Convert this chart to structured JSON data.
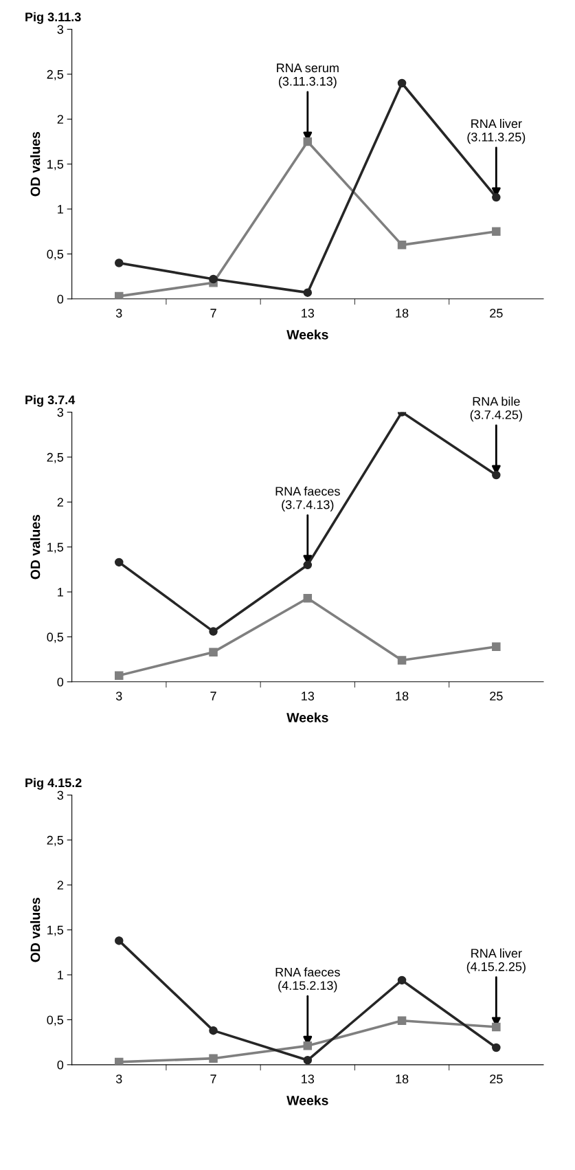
{
  "chart_data": [
    {
      "type": "line",
      "title": "Pig 3.11.3",
      "xlabel": "Weeks",
      "ylabel": "OD values",
      "categories": [
        "3",
        "7",
        "13",
        "18",
        "25"
      ],
      "series": [
        {
          "color": "#262626",
          "marker": "circle",
          "values": [
            0.4,
            0.22,
            0.07,
            2.4,
            1.13
          ]
        },
        {
          "color": "#7f7f7f",
          "marker": "square",
          "values": [
            0.03,
            0.18,
            1.75,
            0.6,
            0.75
          ]
        }
      ],
      "ylim": [
        0,
        3
      ],
      "yticks": [
        0,
        {
          "value": 0.5,
          "label": "0,5"
        },
        1,
        {
          "value": 1.5,
          "label": "1,5"
        },
        2,
        {
          "value": 2.5,
          "label": "2,5"
        },
        3
      ],
      "grid": false,
      "legend": false,
      "annotations": [
        {
          "text": "RNA serum\n(3.11.3.13)",
          "x": "13",
          "y": 1.75
        },
        {
          "text": "RNA liver\n(3.11.3.25)",
          "x": "25",
          "y": 1.13
        }
      ]
    },
    {
      "type": "line",
      "title": "Pig 3.7.4",
      "xlabel": "Weeks",
      "ylabel": "OD values",
      "categories": [
        "3",
        "7",
        "13",
        "18",
        "25"
      ],
      "series": [
        {
          "color": "#262626",
          "marker": "circle",
          "values": [
            1.33,
            0.56,
            1.3,
            3.0,
            2.3
          ]
        },
        {
          "color": "#7f7f7f",
          "marker": "square",
          "values": [
            0.07,
            0.33,
            0.93,
            0.24,
            0.39
          ]
        }
      ],
      "ylim": [
        0,
        3
      ],
      "yticks": [
        0,
        {
          "value": 0.5,
          "label": "0,5"
        },
        1,
        {
          "value": 1.5,
          "label": "1,5"
        },
        2,
        {
          "value": 2.5,
          "label": "2,5"
        },
        3
      ],
      "grid": false,
      "legend": false,
      "annotations": [
        {
          "text": "RNA faeces\n(3.7.4.13)",
          "x": "13",
          "y": 1.3
        },
        {
          "text": "RNA bile\n(3.7.4.25)",
          "x": "25",
          "y": 2.3
        }
      ]
    },
    {
      "type": "line",
      "title": "Pig 4.15.2",
      "xlabel": "Weeks",
      "ylabel": "OD values",
      "categories": [
        "3",
        "7",
        "13",
        "18",
        "25"
      ],
      "series": [
        {
          "color": "#262626",
          "marker": "circle",
          "values": [
            1.38,
            0.38,
            0.05,
            0.94,
            0.19
          ]
        },
        {
          "color": "#7f7f7f",
          "marker": "square",
          "values": [
            0.03,
            0.07,
            0.21,
            0.49,
            0.42
          ]
        }
      ],
      "ylim": [
        0,
        3
      ],
      "yticks": [
        0,
        {
          "value": 0.5,
          "label": "0,5"
        },
        1,
        {
          "value": 1.5,
          "label": "1,5"
        },
        2,
        {
          "value": 2.5,
          "label": "2,5"
        },
        3
      ],
      "grid": false,
      "legend": false,
      "annotations": [
        {
          "text": "RNA faeces\n(4.15.2.13)",
          "x": "13",
          "y": 0.21
        },
        {
          "text": "RNA liver\n(4.15.2.25)",
          "x": "25",
          "y": 0.42
        }
      ]
    }
  ]
}
